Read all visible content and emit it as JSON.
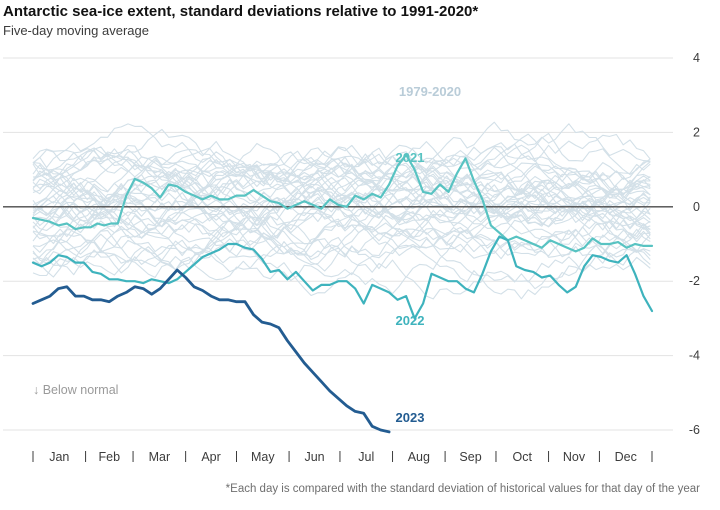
{
  "chart_data": {
    "type": "line",
    "title": "Antarctic sea-ice extent, standard deviations relative to 1991-2020*",
    "subtitle": "Five-day moving average",
    "footnote": "*Each day is compared with the standard deviation of historical values for that day of the year",
    "below_normal_note": "↓ Below normal",
    "x_categories": [
      "Jan",
      "Feb",
      "Mar",
      "Apr",
      "May",
      "Jun",
      "Jul",
      "Aug",
      "Sep",
      "Oct",
      "Nov",
      "Dec"
    ],
    "y_ticks": [
      "4",
      "2",
      "0",
      "-2",
      "-4",
      "-6"
    ],
    "ylim": [
      -6.2,
      4
    ],
    "xlim": [
      0,
      365
    ],
    "grid": true,
    "colors": {
      "historical": "#d3e0e8",
      "2021": "#58c3c2",
      "2022": "#3eb3bd",
      "2023": "#235c91",
      "zero_line": "#4a4a4a",
      "grid": "#e3e3e3"
    },
    "series": [
      {
        "name": "1979-2020",
        "note": "42 individual years drawn as thin light lines fluctuating roughly between -3 and +2.8"
      },
      {
        "name": "2021",
        "x": [
          0,
          5,
          10,
          15,
          20,
          25,
          30,
          34,
          38,
          42,
          46,
          50,
          55,
          60,
          65,
          70,
          75,
          80,
          85,
          90,
          95,
          100,
          105,
          110,
          115,
          120,
          125,
          130,
          135,
          140,
          145,
          150,
          155,
          160,
          165,
          170,
          175,
          180,
          185,
          190,
          195,
          200,
          205,
          210,
          215,
          220,
          225,
          230,
          235,
          240,
          245,
          250,
          255,
          260,
          265,
          270,
          275,
          280,
          285,
          290,
          295,
          300,
          305,
          310,
          315,
          320,
          325,
          330,
          335,
          340,
          345,
          350,
          355,
          360,
          365
        ],
        "values": [
          -0.3,
          -0.35,
          -0.4,
          -0.5,
          -0.45,
          -0.6,
          -0.55,
          -0.55,
          -0.45,
          -0.5,
          -0.45,
          -0.45,
          0.3,
          0.75,
          0.65,
          0.5,
          0.25,
          0.6,
          0.55,
          0.4,
          0.3,
          0.2,
          0.3,
          0.2,
          0.2,
          0.3,
          0.3,
          0.45,
          0.3,
          0.15,
          0.1,
          -0.05,
          0.05,
          0.15,
          0.05,
          -0.05,
          0.2,
          0.05,
          0.0,
          0.3,
          0.2,
          0.35,
          0.25,
          0.6,
          1.1,
          1.4,
          1.0,
          0.4,
          0.35,
          0.6,
          0.4,
          0.9,
          1.3,
          0.7,
          0.2,
          -0.5,
          -0.7,
          -0.9,
          -0.8,
          -0.9,
          -1.0,
          -1.1,
          -0.9,
          -1.0,
          -1.1,
          -1.2,
          -1.1,
          -0.85,
          -1.0,
          -1.0,
          -0.95,
          -1.1,
          -1.0,
          -1.05,
          -1.05
        ]
      },
      {
        "name": "2022",
        "x": [
          0,
          5,
          10,
          15,
          20,
          25,
          30,
          35,
          40,
          45,
          50,
          55,
          60,
          65,
          70,
          75,
          80,
          85,
          90,
          95,
          100,
          105,
          110,
          115,
          120,
          125,
          130,
          135,
          140,
          145,
          150,
          155,
          160,
          165,
          170,
          175,
          180,
          185,
          190,
          195,
          200,
          205,
          210,
          215,
          220,
          225,
          230,
          235,
          240,
          245,
          250,
          255,
          260,
          265,
          270,
          275,
          280,
          285,
          290,
          295,
          300,
          305,
          310,
          315,
          320,
          325,
          330,
          335,
          340,
          345,
          350,
          355,
          360,
          365
        ],
        "values": [
          -1.5,
          -1.6,
          -1.5,
          -1.3,
          -1.35,
          -1.5,
          -1.5,
          -1.75,
          -1.8,
          -1.95,
          -1.95,
          -2.0,
          -2.0,
          -2.05,
          -1.95,
          -2.0,
          -2.05,
          -1.95,
          -1.75,
          -1.55,
          -1.35,
          -1.25,
          -1.15,
          -1.0,
          -1.0,
          -1.1,
          -1.15,
          -1.4,
          -1.75,
          -1.7,
          -1.95,
          -1.75,
          -2.0,
          -2.25,
          -2.1,
          -2.1,
          -2.0,
          -2.0,
          -2.2,
          -2.6,
          -2.1,
          -2.2,
          -2.3,
          -2.5,
          -2.4,
          -3.0,
          -2.6,
          -1.8,
          -1.9,
          -2.0,
          -2.0,
          -2.2,
          -2.3,
          -1.8,
          -1.2,
          -0.8,
          -0.9,
          -1.6,
          -1.7,
          -1.75,
          -1.9,
          -1.85,
          -2.1,
          -2.3,
          -2.15,
          -1.6,
          -1.3,
          -1.35,
          -1.45,
          -1.5,
          -1.3,
          -1.8,
          -2.4,
          -2.8
        ]
      },
      {
        "name": "2023",
        "x": [
          0,
          5,
          10,
          15,
          20,
          25,
          30,
          35,
          40,
          45,
          50,
          55,
          60,
          65,
          70,
          75,
          80,
          85,
          90,
          95,
          100,
          105,
          110,
          115,
          120,
          125,
          130,
          135,
          140,
          145,
          150,
          155,
          160,
          165,
          170,
          175,
          180,
          185,
          190,
          195,
          200,
          205,
          210
        ],
        "values": [
          -2.6,
          -2.5,
          -2.4,
          -2.2,
          -2.15,
          -2.4,
          -2.4,
          -2.5,
          -2.5,
          -2.55,
          -2.4,
          -2.3,
          -2.15,
          -2.2,
          -2.35,
          -2.2,
          -1.95,
          -1.7,
          -1.9,
          -2.15,
          -2.25,
          -2.4,
          -2.5,
          -2.5,
          -2.55,
          -2.55,
          -2.9,
          -3.1,
          -3.15,
          -3.25,
          -3.6,
          -3.9,
          -4.2,
          -4.45,
          -4.7,
          -4.95,
          -5.15,
          -5.35,
          -5.5,
          -5.55,
          -5.9,
          -6.0,
          -6.05
        ]
      }
    ],
    "annotations": [
      "1979-2020",
      "2021",
      "2022",
      "2023"
    ]
  }
}
